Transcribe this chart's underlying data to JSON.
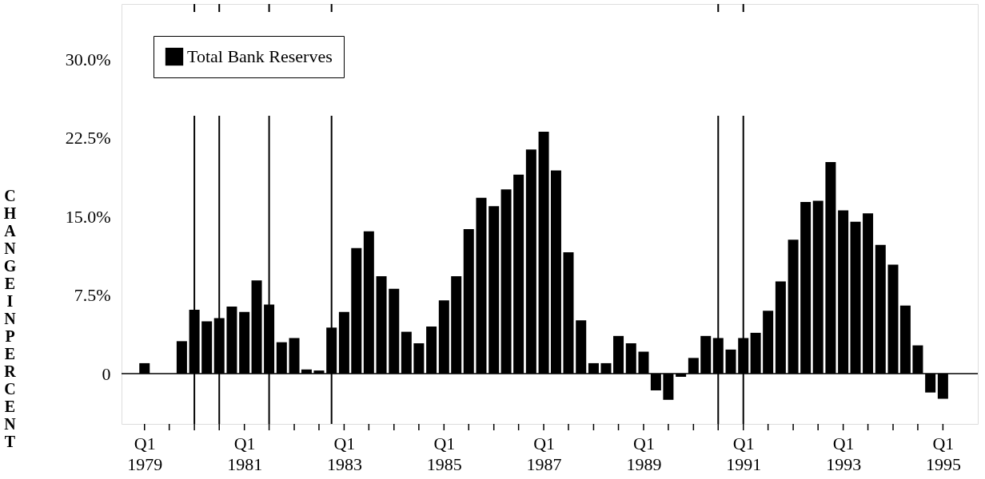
{
  "chart_data": {
    "type": "bar",
    "ylabel": "CHANGE IN PERCENT",
    "x": [
      "1979-01",
      "1979-04",
      "1979-07",
      "1979-10",
      "1980-01",
      "1980-04",
      "1980-07",
      "1980-10",
      "1981-01",
      "1981-04",
      "1981-07",
      "1981-10",
      "1982-01",
      "1982-04",
      "1982-07",
      "1982-10",
      "1983-01",
      "1983-04",
      "1983-07",
      "1983-10",
      "1984-01",
      "1984-04",
      "1984-07",
      "1984-10",
      "1985-01",
      "1985-04",
      "1985-07",
      "1985-10",
      "1986-01",
      "1986-04",
      "1986-07",
      "1986-10",
      "1987-01",
      "1987-04",
      "1987-07",
      "1987-10",
      "1988-01",
      "1988-04",
      "1988-07",
      "1988-10",
      "1989-01",
      "1989-04",
      "1989-07",
      "1989-10",
      "1990-01",
      "1990-04",
      "1990-07",
      "1990-10",
      "1991-01",
      "1991-04",
      "1991-07",
      "1991-10",
      "1992-01",
      "1992-04",
      "1992-07",
      "1992-10",
      "1993-01",
      "1993-04",
      "1993-07",
      "1993-10",
      "1994-01",
      "1994-04",
      "1994-07",
      "1994-10",
      "1995-01"
    ],
    "series": [
      {
        "name": "Total Bank Reserves",
        "color": "#000000",
        "values": [
          1.0,
          0.0,
          0.0,
          3.1,
          6.1,
          5.0,
          5.3,
          6.4,
          5.9,
          8.9,
          6.6,
          3.0,
          3.4,
          0.4,
          0.3,
          4.4,
          5.9,
          12.0,
          13.6,
          9.3,
          8.1,
          4.0,
          2.9,
          4.5,
          7.0,
          9.3,
          13.8,
          16.8,
          16.0,
          17.6,
          19.0,
          21.4,
          23.1,
          19.4,
          11.6,
          5.1,
          1.0,
          1.0,
          3.6,
          2.9,
          2.1,
          -1.6,
          -2.5,
          -0.3,
          1.5,
          3.6,
          3.4,
          2.3,
          3.4,
          3.9,
          6.0,
          8.8,
          12.8,
          16.4,
          16.5,
          20.2,
          15.6,
          14.5,
          15.3,
          12.3,
          10.4,
          6.5,
          2.7,
          -1.8,
          -2.4
        ]
      }
    ],
    "xlim": [
      "1978-08-15",
      "1995-08-15"
    ],
    "xticks": [
      {
        "value": "1979-01",
        "label": "Q1 1979"
      },
      {
        "value": "1979-07",
        "label": null
      },
      {
        "value": "1980-01",
        "label": null
      },
      {
        "value": "1980-07",
        "label": null
      },
      {
        "value": "1981-01",
        "label": "Q1 1981"
      },
      {
        "value": "1981-07",
        "label": null
      },
      {
        "value": "1982-01",
        "label": null
      },
      {
        "value": "1982-07",
        "label": null
      },
      {
        "value": "1983-01",
        "label": "Q1 1983"
      },
      {
        "value": "1983-07",
        "label": null
      },
      {
        "value": "1984-01",
        "label": null
      },
      {
        "value": "1984-07",
        "label": null
      },
      {
        "value": "1985-01",
        "label": "Q1 1985"
      },
      {
        "value": "1985-07",
        "label": null
      },
      {
        "value": "1986-01",
        "label": null
      },
      {
        "value": "1986-07",
        "label": null
      },
      {
        "value": "1987-01",
        "label": "Q1 1987"
      },
      {
        "value": "1987-07",
        "label": null
      },
      {
        "value": "1988-01",
        "label": null
      },
      {
        "value": "1988-07",
        "label": null
      },
      {
        "value": "1989-01",
        "label": "Q1 1989"
      },
      {
        "value": "1989-07",
        "label": null
      },
      {
        "value": "1990-01",
        "label": null
      },
      {
        "value": "1990-07",
        "label": null
      },
      {
        "value": "1991-01",
        "label": "Q1 1991"
      },
      {
        "value": "1991-07",
        "label": null
      },
      {
        "value": "1992-01",
        "label": null
      },
      {
        "value": "1992-07",
        "label": null
      },
      {
        "value": "1993-01",
        "label": "Q1 1993"
      },
      {
        "value": "1993-07",
        "label": null
      },
      {
        "value": "1994-01",
        "label": null
      },
      {
        "value": "1994-07",
        "label": null
      },
      {
        "value": "1995-01",
        "label": "Q1 1995"
      }
    ],
    "ylim": [
      -4.8,
      35.3
    ],
    "yticks": [
      0,
      {
        "value": 7.5,
        "label": "7.5%"
      },
      {
        "value": 15,
        "label": "15.0%"
      },
      {
        "value": 22.5,
        "label": "22.5%"
      },
      {
        "value": 30,
        "label": "30.0%"
      }
    ],
    "ref_lines": [
      {
        "axis": "y",
        "value": 0
      },
      {
        "axis": "x",
        "value": "1980-01"
      },
      {
        "axis": "x",
        "value": "1980-07"
      },
      {
        "axis": "x",
        "value": "1981-07"
      },
      {
        "axis": "x",
        "value": "1982-10"
      },
      {
        "axis": "x",
        "value": "1990-07"
      },
      {
        "axis": "x",
        "value": "1991-01"
      }
    ],
    "grid": false,
    "legend": "top left"
  }
}
